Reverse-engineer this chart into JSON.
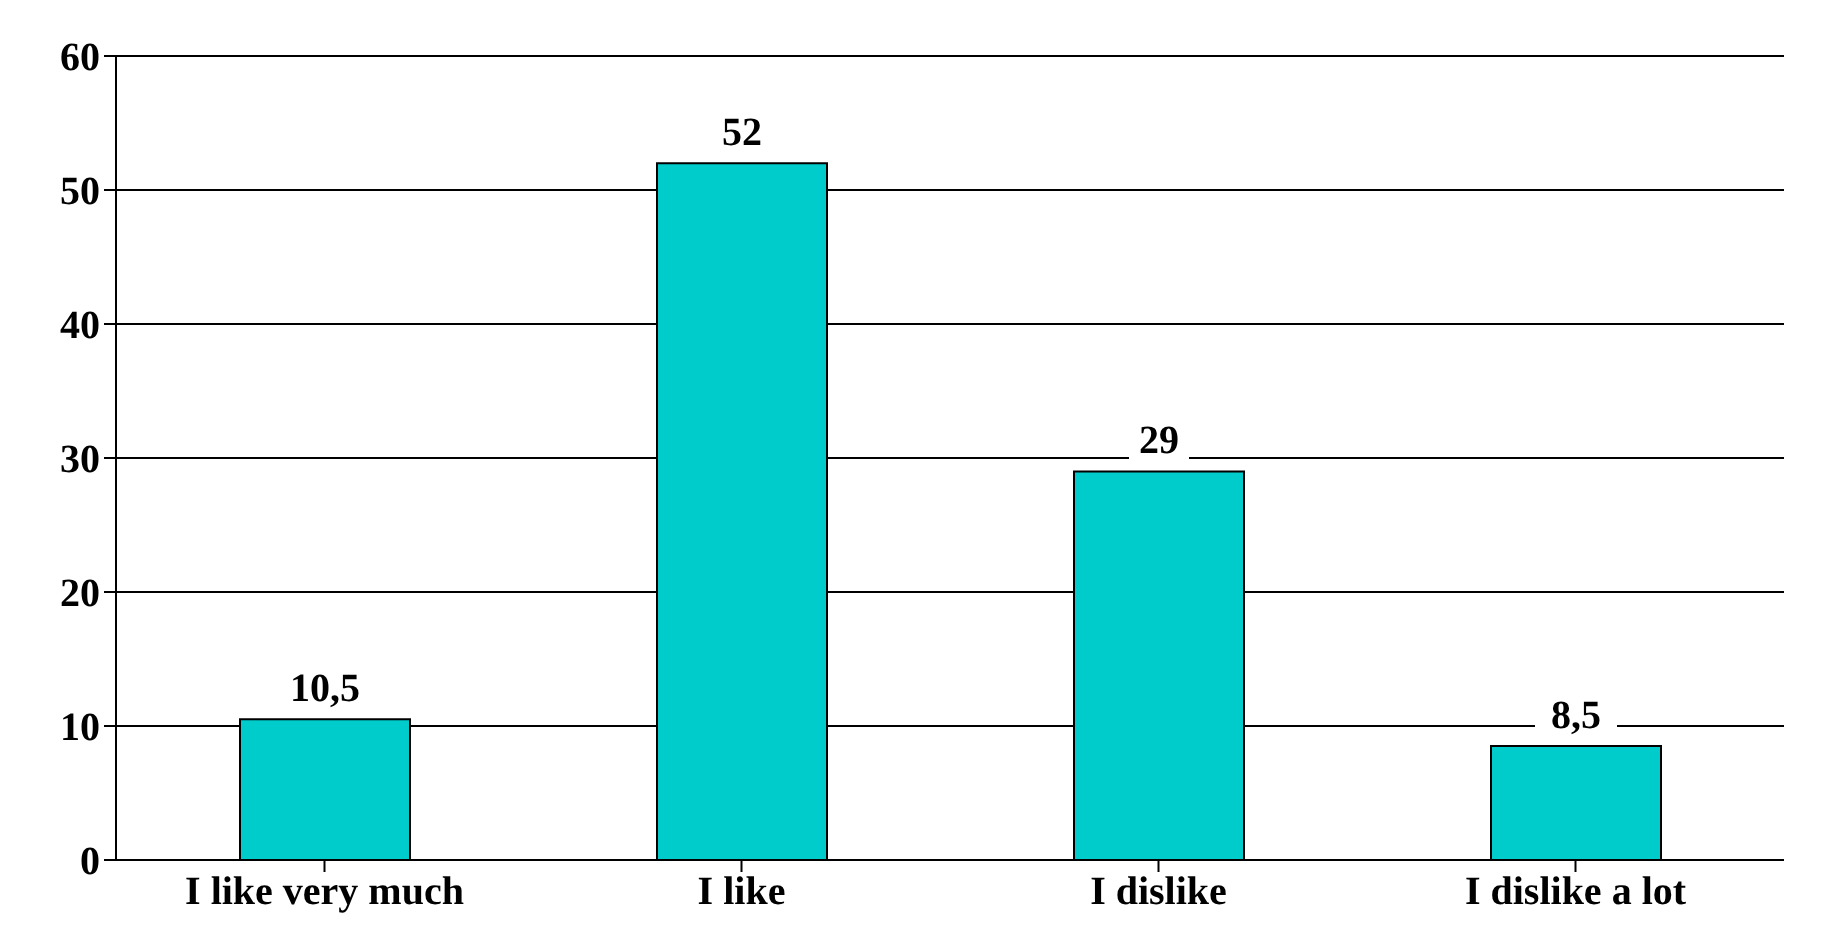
{
  "chart_data": {
    "type": "bar",
    "categories": [
      "I  like very much",
      "I like",
      "I dislike",
      "I dislike a lot"
    ],
    "values": [
      10.5,
      52,
      29,
      8.5
    ],
    "color": "#00cccc",
    "value_labels": [
      "10,5",
      "52",
      "29",
      "8,5"
    ],
    "ylim": [
      0,
      60
    ],
    "yticks": [
      0,
      10,
      20,
      30,
      40,
      50,
      60
    ],
    "grid": "y"
  }
}
